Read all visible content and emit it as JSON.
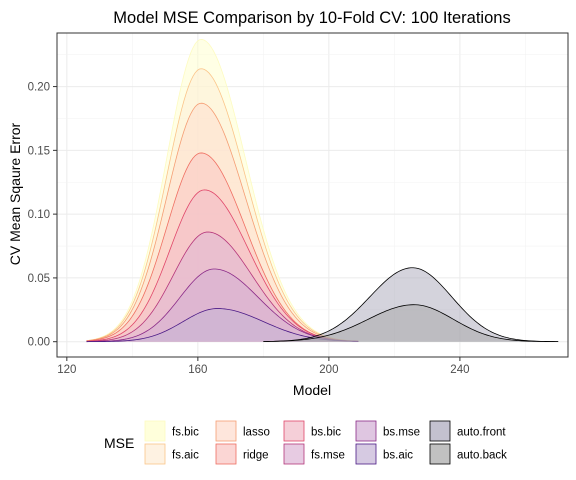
{
  "chart_data": {
    "type": "area",
    "title": "Model MSE Comparison by 10-Fold CV: 100 Iterations",
    "xlabel": "Model",
    "ylabel": "CV Mean Sqaure Error",
    "xlim": [
      117,
      273
    ],
    "ylim": [
      -0.012,
      0.242
    ],
    "x_ticks": [
      120,
      160,
      200,
      240
    ],
    "x_tick_labels": [
      "120",
      "160",
      "200",
      "240"
    ],
    "y_ticks": [
      0.0,
      0.05,
      0.1,
      0.15,
      0.2
    ],
    "y_tick_labels": [
      "0.00",
      "0.05",
      "0.10",
      "0.15",
      "0.20"
    ],
    "grid": true,
    "legend": {
      "title": "MSE",
      "position": "bottom",
      "ncol": 5,
      "entries": [
        "fs.bic",
        "fs.aic",
        "lasso",
        "ridge",
        "bs.bic",
        "fs.mse",
        "bs.mse",
        "bs.aic",
        "auto.front",
        "auto.back"
      ]
    },
    "series": [
      {
        "name": "fs.bic",
        "fill": "#FFFFCC",
        "stroke": "#FDFBC1",
        "x_range": [
          126,
          209
        ],
        "peak_x": 161,
        "peak_y": 0.237,
        "sd_left": 10.5,
        "sd_right": 13.5
      },
      {
        "name": "fs.aic",
        "fill": "#FEEDD6",
        "stroke": "#FBC58A",
        "x_range": [
          126,
          209
        ],
        "peak_x": 161,
        "peak_y": 0.214,
        "sd_left": 10.5,
        "sd_right": 13.5
      },
      {
        "name": "lasso",
        "fill": "#FDDCCD",
        "stroke": "#F59E74",
        "x_range": [
          126,
          209
        ],
        "peak_x": 161,
        "peak_y": 0.187,
        "sd_left": 10.5,
        "sd_right": 13.5
      },
      {
        "name": "ridge",
        "fill": "#F9C4C2",
        "stroke": "#EF6F62",
        "x_range": [
          126,
          209
        ],
        "peak_x": 161,
        "peak_y": 0.148,
        "sd_left": 10.5,
        "sd_right": 13.5
      },
      {
        "name": "bs.bic",
        "fill": "#F1BAC8",
        "stroke": "#E0476A",
        "x_range": [
          126,
          209
        ],
        "peak_x": 162,
        "peak_y": 0.119,
        "sd_left": 10.5,
        "sd_right": 13.5
      },
      {
        "name": "fs.mse",
        "fill": "#DDB5D5",
        "stroke": "#B5367A",
        "x_range": [
          126,
          209
        ],
        "peak_x": 163,
        "peak_y": 0.086,
        "sd_left": 10.5,
        "sd_right": 13.5
      },
      {
        "name": "bs.mse",
        "fill": "#D1AED4",
        "stroke": "#8A2A88",
        "x_range": [
          126,
          209
        ],
        "peak_x": 165,
        "peak_y": 0.057,
        "sd_left": 10.5,
        "sd_right": 13.5
      },
      {
        "name": "bs.aic",
        "fill": "#C4B3D6",
        "stroke": "#4B1A86",
        "x_range": [
          126,
          209
        ],
        "peak_x": 166,
        "peak_y": 0.026,
        "sd_left": 10.5,
        "sd_right": 14
      },
      {
        "name": "auto.front",
        "fill": "#A9A7BA",
        "stroke": "#000000",
        "x_range": [
          180,
          270
        ],
        "peak_x": 225.5,
        "peak_y": 0.058,
        "sd_left": 13,
        "sd_right": 12
      },
      {
        "name": "auto.back",
        "fill": "#A6A6A6",
        "stroke": "#000000",
        "x_range": [
          180,
          270
        ],
        "peak_x": 226,
        "peak_y": 0.029,
        "sd_left": 14,
        "sd_right": 12
      }
    ]
  }
}
